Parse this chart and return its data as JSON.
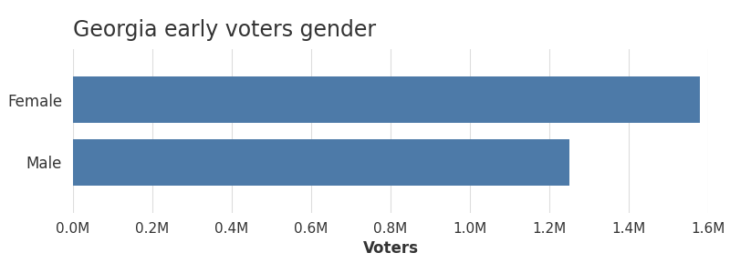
{
  "title": "Georgia early voters gender",
  "categories": [
    "Male",
    "Female"
  ],
  "values": [
    1250000,
    1580000
  ],
  "bar_color": "#4d7aa8",
  "xlabel": "Voters",
  "xlim": [
    0,
    1600000
  ],
  "xticks": [
    0,
    200000,
    400000,
    600000,
    800000,
    1000000,
    1200000,
    1400000,
    1600000
  ],
  "xtick_labels": [
    "0.0M",
    "0.2M",
    "0.4M",
    "0.6M",
    "0.8M",
    "1.0M",
    "1.2M",
    "1.4M",
    "1.6M"
  ],
  "title_fontsize": 17,
  "label_fontsize": 12,
  "tick_fontsize": 11,
  "bar_height": 0.75,
  "background_color": "#ffffff",
  "grid_color": "#dddddd",
  "text_color": "#333333"
}
